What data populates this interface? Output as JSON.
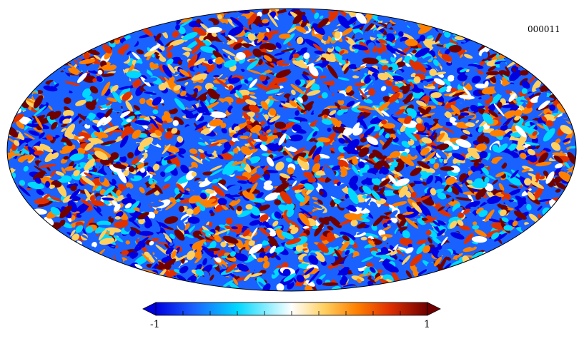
{
  "map": {
    "label": "000011",
    "projection": "mollweide",
    "colormap": [
      "#0000e0",
      "#1a62ff",
      "#00d8ff",
      "#ffffff",
      "#ffd060",
      "#ff8000",
      "#e03000",
      "#700000"
    ]
  },
  "colorbar": {
    "min_label": "-1",
    "max_label": "1",
    "range": [
      -1,
      1
    ],
    "extend": "both"
  }
}
